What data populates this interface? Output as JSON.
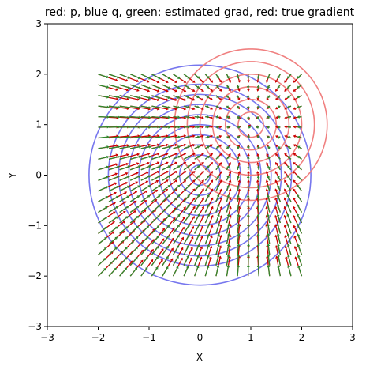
{
  "chart_data": {
    "type": "vector-field-contour",
    "title": "red: p, blue q, green: estimated grad, red: true gradient",
    "xlabel": "X",
    "ylabel": "Y",
    "xlim": [
      -3,
      3
    ],
    "ylim": [
      -3,
      3
    ],
    "xticks": [
      -3,
      -2,
      -1,
      0,
      1,
      2,
      3
    ],
    "yticks": [
      -3,
      -2,
      -1,
      0,
      1,
      2,
      3
    ],
    "xtick_labels": [
      "−3",
      "−2",
      "−1",
      "0",
      "1",
      "2",
      "3"
    ],
    "ytick_labels": [
      "−3",
      "−2",
      "−1",
      "0",
      "1",
      "2",
      "3"
    ],
    "grid": false,
    "distributions": {
      "p": {
        "color": "#f08080",
        "center": [
          1,
          1
        ],
        "radii": [
          0.25,
          0.5,
          0.75,
          1.0,
          1.25,
          1.5
        ],
        "clip_x": [
          -3,
          2.5
        ],
        "clip_y": [
          -3,
          2.5
        ]
      },
      "q": {
        "color": "#7777ee",
        "center": [
          0,
          0
        ],
        "radii": [
          0.2,
          0.4,
          0.6,
          0.8,
          1.0,
          1.2,
          1.4,
          1.6,
          1.8,
          2.18
        ]
      }
    },
    "vector_field": {
      "grid_x": [
        -2,
        2,
        20
      ],
      "grid_y": [
        -2,
        2,
        20
      ],
      "arrow_scale": 0.17,
      "true_gradient": {
        "color": "#cc0000",
        "target": [
          1,
          1
        ]
      },
      "estimated_gradient": {
        "color": "#2e8b2e",
        "target": [
          1,
          1
        ]
      }
    }
  }
}
